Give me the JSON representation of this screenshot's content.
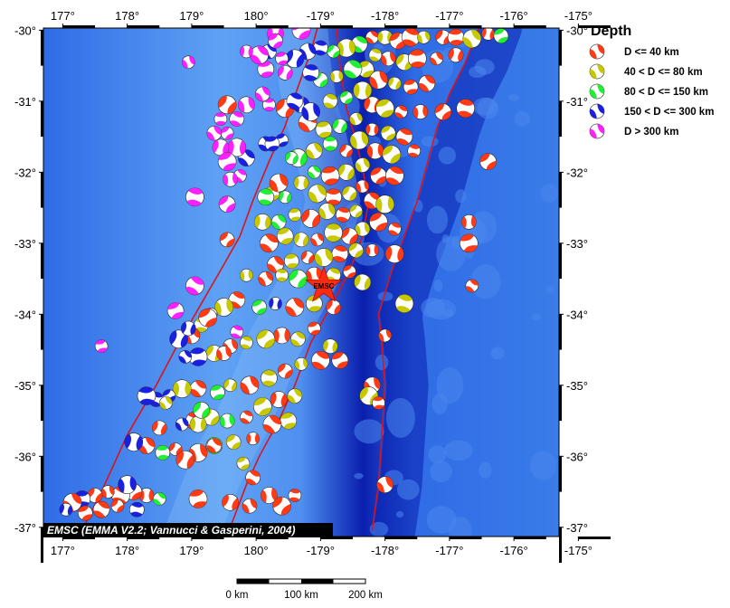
{
  "map": {
    "lon_range": [
      176.7,
      -175.3
    ],
    "lat_range": [
      -29.97,
      -37.13
    ],
    "lon_ticks": [
      {
        "value": 177,
        "label": "177°"
      },
      {
        "value": 178,
        "label": "178°"
      },
      {
        "value": 179,
        "label": "179°"
      },
      {
        "value": 180,
        "label": "180°"
      },
      {
        "value": -179,
        "label": "-179°"
      },
      {
        "value": -178,
        "label": "-178°"
      },
      {
        "value": -177,
        "label": "-177°"
      },
      {
        "value": -176,
        "label": "-176°"
      },
      {
        "value": -175,
        "label": "-175°"
      }
    ],
    "lat_ticks": [
      {
        "value": -30,
        "label": "-30°"
      },
      {
        "value": -31,
        "label": "-31°"
      },
      {
        "value": -32,
        "label": "-32°"
      },
      {
        "value": -33,
        "label": "-33°"
      },
      {
        "value": -34,
        "label": "-34°"
      },
      {
        "value": -35,
        "label": "-35°"
      },
      {
        "value": -36,
        "label": "-36°"
      },
      {
        "value": -37,
        "label": "-37°"
      }
    ],
    "credit": "EMSC (EMMA V2.2; Vannucci & Gasperini, 2004)",
    "epicenter": {
      "label": "EMSC",
      "lon": -178.95,
      "lat": -33.6,
      "color": "#ff2a10"
    },
    "fault_color": "#d8141e",
    "faults": [
      [
        [
          177.25,
          -37.13
        ],
        [
          177.6,
          -36.5
        ],
        [
          178.0,
          -35.7
        ],
        [
          178.45,
          -35.0
        ],
        [
          178.8,
          -34.4
        ],
        [
          179.15,
          -33.85
        ],
        [
          179.5,
          -33.3
        ],
        [
          179.75,
          -32.9
        ],
        [
          179.95,
          -32.4
        ],
        [
          -179.8,
          -31.85
        ],
        [
          -179.55,
          -31.35
        ],
        [
          -179.35,
          -30.8
        ],
        [
          -179.15,
          -30.3
        ],
        [
          -179.05,
          -29.97
        ]
      ],
      [
        [
          179.6,
          -37.0
        ],
        [
          179.85,
          -36.4
        ],
        [
          -179.95,
          -36.0
        ],
        [
          -179.65,
          -35.5
        ],
        [
          -179.4,
          -35.0
        ],
        [
          -179.15,
          -34.4
        ],
        [
          -178.85,
          -33.9
        ],
        [
          -178.55,
          -33.4
        ],
        [
          -178.35,
          -32.9
        ],
        [
          -178.25,
          -32.4
        ],
        [
          -178.35,
          -31.95
        ],
        [
          -178.45,
          -31.55
        ],
        [
          -178.6,
          -31.1
        ],
        [
          -178.7,
          -30.5
        ],
        [
          -178.75,
          -29.97
        ]
      ],
      [
        [
          -178.2,
          -37.05
        ],
        [
          -178.1,
          -36.4
        ],
        [
          -178.05,
          -35.7
        ],
        [
          -178.0,
          -35.0
        ],
        [
          -178.05,
          -34.4
        ],
        [
          -178.1,
          -34.0
        ],
        [
          -177.9,
          -33.4
        ],
        [
          -177.7,
          -32.9
        ],
        [
          -177.5,
          -32.4
        ],
        [
          -177.35,
          -31.9
        ],
        [
          -177.2,
          -31.4
        ],
        [
          -177.0,
          -30.9
        ],
        [
          -176.75,
          -30.45
        ],
        [
          -176.55,
          -29.97
        ]
      ]
    ],
    "ocean_colors": {
      "deep": "#0a1fae",
      "mid": "#2f6ce6",
      "shallow": "#5fa2f4",
      "ridge": "#86bdf6"
    },
    "depth_classes": [
      {
        "label": "D <= 40 km",
        "color": "#ff3a14"
      },
      {
        "label": "40 < D <= 80 km",
        "color": "#c8c800"
      },
      {
        "label": "80 < D <= 150 km",
        "color": "#22ee33"
      },
      {
        "label": "150 < D <= 300 km",
        "color": "#1a20e0"
      },
      {
        "label": "D > 300 km",
        "color": "#ff20ff"
      }
    ],
    "events": [
      [
        -178.2,
        -30.1,
        0
      ],
      [
        -178.0,
        -30.1,
        1
      ],
      [
        -177.8,
        -30.15,
        0
      ],
      [
        -177.6,
        -30.1,
        0
      ],
      [
        -177.4,
        -30.1,
        1
      ],
      [
        -177.1,
        -30.1,
        0
      ],
      [
        -176.9,
        -30.1,
        0
      ],
      [
        -176.65,
        -30.12,
        1
      ],
      [
        -176.4,
        -30.05,
        0
      ],
      [
        -176.2,
        -30.08,
        2
      ],
      [
        -178.4,
        -30.2,
        2
      ],
      [
        -178.6,
        -30.25,
        1
      ],
      [
        -178.8,
        -30.3,
        2
      ],
      [
        -179.0,
        -30.25,
        3
      ],
      [
        -179.2,
        -30.3,
        3
      ],
      [
        -179.4,
        -30.4,
        3
      ],
      [
        -179.6,
        -30.4,
        4
      ],
      [
        -179.8,
        -30.3,
        3
      ],
      [
        -179.7,
        -30.05,
        4
      ],
      [
        -179.3,
        -30.0,
        4
      ],
      [
        -178.15,
        -30.35,
        1
      ],
      [
        -177.95,
        -30.4,
        0
      ],
      [
        -177.7,
        -30.45,
        1
      ],
      [
        -177.5,
        -30.4,
        0
      ],
      [
        -177.2,
        -30.4,
        0
      ],
      [
        -176.9,
        -30.35,
        0
      ],
      [
        -178.3,
        -30.55,
        1
      ],
      [
        -178.5,
        -30.55,
        2
      ],
      [
        -178.75,
        -30.65,
        1
      ],
      [
        -179.0,
        -30.7,
        2
      ],
      [
        -179.15,
        -30.6,
        3
      ],
      [
        -178.1,
        -30.7,
        0
      ],
      [
        -177.85,
        -30.75,
        1
      ],
      [
        -177.6,
        -30.8,
        0
      ],
      [
        -177.35,
        -30.75,
        0
      ],
      [
        -178.35,
        -30.85,
        1
      ],
      [
        -178.6,
        -30.95,
        2
      ],
      [
        -178.85,
        -31.0,
        1
      ],
      [
        -179.3,
        -31.05,
        3
      ],
      [
        -179.55,
        -31.1,
        0
      ],
      [
        -179.8,
        -31.05,
        4
      ],
      [
        -179.9,
        -30.9,
        4
      ],
      [
        -178.2,
        -31.05,
        0
      ],
      [
        -178.0,
        -31.1,
        1
      ],
      [
        -177.75,
        -31.15,
        0
      ],
      [
        -177.45,
        -31.15,
        0
      ],
      [
        -177.1,
        -31.15,
        0
      ],
      [
        -176.75,
        -31.1,
        0
      ],
      [
        -178.45,
        -31.25,
        1
      ],
      [
        -178.7,
        -31.35,
        2
      ],
      [
        -178.95,
        -31.4,
        1
      ],
      [
        -179.2,
        -31.3,
        0
      ],
      [
        -178.2,
        -31.4,
        0
      ],
      [
        -177.95,
        -31.45,
        1
      ],
      [
        -177.7,
        -31.5,
        0
      ],
      [
        -178.4,
        -31.55,
        1
      ],
      [
        -178.6,
        -31.7,
        0
      ],
      [
        -178.85,
        -31.6,
        2
      ],
      [
        -179.1,
        -31.7,
        1
      ],
      [
        -179.35,
        -31.8,
        2
      ],
      [
        -179.6,
        -31.55,
        3
      ],
      [
        -179.85,
        -31.6,
        3
      ],
      [
        -178.15,
        -31.7,
        0
      ],
      [
        -177.9,
        -31.75,
        1
      ],
      [
        -177.55,
        -31.7,
        0
      ],
      [
        -178.35,
        -31.9,
        1
      ],
      [
        -178.6,
        -32.0,
        1
      ],
      [
        -178.85,
        -32.05,
        0
      ],
      [
        -179.1,
        -32.0,
        2
      ],
      [
        -179.3,
        -32.15,
        1
      ],
      [
        -178.1,
        -32.05,
        0
      ],
      [
        -177.85,
        -32.05,
        0
      ],
      [
        -178.35,
        -32.2,
        0
      ],
      [
        -178.55,
        -32.3,
        1
      ],
      [
        -178.8,
        -32.35,
        0
      ],
      [
        -179.05,
        -32.3,
        1
      ],
      [
        -179.55,
        -32.35,
        2
      ],
      [
        -179.75,
        -32.3,
        1
      ],
      [
        -178.2,
        -32.4,
        0
      ],
      [
        -178.0,
        -32.45,
        1
      ],
      [
        -178.45,
        -32.55,
        1
      ],
      [
        -178.65,
        -32.6,
        0
      ],
      [
        -178.9,
        -32.55,
        1
      ],
      [
        -179.15,
        -32.65,
        0
      ],
      [
        -179.4,
        -32.6,
        1
      ],
      [
        -179.65,
        -32.7,
        2
      ],
      [
        -179.9,
        -32.7,
        1
      ],
      [
        -178.1,
        -32.7,
        0
      ],
      [
        -177.85,
        -32.8,
        0
      ],
      [
        -178.35,
        -32.8,
        1
      ],
      [
        -178.55,
        -32.9,
        0
      ],
      [
        -178.8,
        -32.85,
        1
      ],
      [
        -179.05,
        -32.95,
        0
      ],
      [
        -179.3,
        -32.95,
        1
      ],
      [
        -179.55,
        -32.9,
        1
      ],
      [
        -179.8,
        -33.0,
        0
      ],
      [
        -178.2,
        -33.1,
        0
      ],
      [
        -178.45,
        -33.1,
        1
      ],
      [
        -178.7,
        -33.15,
        0
      ],
      [
        -178.95,
        -33.2,
        1
      ],
      [
        -179.2,
        -33.2,
        0
      ],
      [
        -179.45,
        -33.25,
        1
      ],
      [
        -179.7,
        -33.3,
        0
      ],
      [
        -177.85,
        -33.15,
        0
      ],
      [
        -178.55,
        -33.4,
        0
      ],
      [
        -178.8,
        -33.45,
        1
      ],
      [
        -179.1,
        -33.45,
        0
      ],
      [
        -179.35,
        -33.5,
        2
      ],
      [
        -179.6,
        -33.45,
        1
      ],
      [
        -179.85,
        -33.5,
        0
      ],
      [
        -178.35,
        -33.55,
        1
      ],
      [
        -176.7,
        -33.0,
        0
      ],
      [
        -176.65,
        -33.6,
        0
      ],
      [
        -176.7,
        -32.7,
        0
      ],
      [
        -176.4,
        -31.85,
        0
      ],
      [
        -177.7,
        -33.85,
        1
      ],
      [
        -178.0,
        -34.3,
        0
      ],
      [
        -178.8,
        -33.9,
        0
      ],
      [
        -179.1,
        -33.85,
        1
      ],
      [
        -179.4,
        -33.9,
        0
      ],
      [
        -179.7,
        -33.85,
        3
      ],
      [
        -179.95,
        -33.9,
        2
      ],
      [
        179.7,
        -33.8,
        0
      ],
      [
        179.5,
        -33.9,
        1
      ],
      [
        179.3,
        -34.0,
        4
      ],
      [
        179.15,
        -34.15,
        1
      ],
      [
        179.0,
        -34.3,
        0
      ],
      [
        178.8,
        -34.35,
        3
      ],
      [
        -179.1,
        -34.2,
        0
      ],
      [
        -179.35,
        -34.35,
        1
      ],
      [
        -179.6,
        -34.3,
        0
      ],
      [
        -179.85,
        -34.35,
        1
      ],
      [
        179.85,
        -34.4,
        1
      ],
      [
        179.6,
        -34.45,
        0
      ],
      [
        179.35,
        -34.55,
        1
      ],
      [
        179.1,
        -34.6,
        3
      ],
      [
        178.9,
        -34.6,
        3
      ],
      [
        -178.85,
        -34.45,
        1
      ],
      [
        -178.7,
        -34.65,
        0
      ],
      [
        -179.0,
        -34.65,
        0
      ],
      [
        -179.3,
        -34.7,
        1
      ],
      [
        -179.55,
        -34.8,
        0
      ],
      [
        -179.8,
        -34.9,
        1
      ],
      [
        179.9,
        -35.0,
        0
      ],
      [
        179.6,
        -35.0,
        1
      ],
      [
        179.4,
        -35.1,
        2
      ],
      [
        179.1,
        -35.05,
        0
      ],
      [
        178.85,
        -35.05,
        1
      ],
      [
        178.65,
        -35.15,
        3
      ],
      [
        178.45,
        -35.2,
        3
      ],
      [
        -178.2,
        -35.0,
        0
      ],
      [
        -178.25,
        -35.15,
        1
      ],
      [
        -178.1,
        -35.25,
        0
      ],
      [
        -179.4,
        -35.15,
        1
      ],
      [
        -179.65,
        -35.2,
        0
      ],
      [
        -179.9,
        -35.3,
        1
      ],
      [
        179.85,
        -35.45,
        0
      ],
      [
        179.55,
        -35.5,
        2
      ],
      [
        179.3,
        -35.45,
        1
      ],
      [
        179.05,
        -35.5,
        0
      ],
      [
        178.85,
        -35.55,
        3
      ],
      [
        178.5,
        -35.6,
        0
      ],
      [
        -179.5,
        -35.5,
        1
      ],
      [
        -179.75,
        -35.55,
        0
      ],
      [
        179.95,
        -35.75,
        0
      ],
      [
        179.65,
        -35.8,
        1
      ],
      [
        179.35,
        -35.85,
        2
      ],
      [
        179.1,
        -35.95,
        0
      ],
      [
        178.75,
        -35.9,
        0
      ],
      [
        178.55,
        -35.95,
        2
      ],
      [
        178.3,
        -35.85,
        0
      ],
      [
        178.1,
        -35.8,
        3
      ],
      [
        179.8,
        -36.1,
        1
      ],
      [
        179.95,
        -36.3,
        0
      ],
      [
        -179.8,
        -36.55,
        0
      ],
      [
        -179.6,
        -36.7,
        0
      ],
      [
        -179.4,
        -36.55,
        0
      ],
      [
        179.9,
        -36.7,
        0
      ],
      [
        179.6,
        -36.65,
        0
      ],
      [
        179.1,
        -36.6,
        0
      ],
      [
        178.5,
        -36.6,
        2
      ],
      [
        178.3,
        -36.55,
        0
      ],
      [
        178.1,
        -36.5,
        0
      ],
      [
        177.9,
        -36.55,
        0
      ],
      [
        177.7,
        -36.5,
        0
      ],
      [
        177.5,
        -36.55,
        0
      ],
      [
        177.3,
        -36.6,
        3
      ],
      [
        177.15,
        -36.65,
        0
      ],
      [
        177.05,
        -36.75,
        3
      ],
      [
        177.35,
        -36.8,
        0
      ],
      [
        177.6,
        -36.75,
        0
      ],
      [
        178.0,
        -36.4,
        3
      ],
      [
        177.85,
        -36.7,
        0
      ],
      [
        178.15,
        -36.75,
        3
      ],
      [
        -178.0,
        -36.4,
        0
      ],
      [
        178.9,
        -36.05,
        0
      ],
      [
        177.6,
        -34.45,
        4
      ],
      [
        179.35,
        -35.85,
        0
      ],
      [
        179.1,
        -35.55,
        1
      ],
      [
        179.25,
        -34.05,
        0
      ],
      [
        179.7,
        -34.25,
        4
      ],
      [
        179.5,
        -34.55,
        0
      ],
      [
        179.15,
        -35.35,
        2
      ],
      [
        178.3,
        -35.15,
        3
      ],
      [
        178.6,
        -35.25,
        1
      ],
      [
        178.95,
        -34.2,
        3
      ],
      [
        178.75,
        -33.95,
        4
      ],
      [
        179.05,
        -33.6,
        4
      ],
      [
        179.85,
        -33.45,
        1
      ],
      [
        179.55,
        -32.95,
        0
      ],
      [
        -179.85,
        -32.35,
        2
      ],
      [
        -179.65,
        -32.15,
        0
      ],
      [
        -179.45,
        -31.8,
        2
      ],
      [
        -179.75,
        -31.6,
        3
      ],
      [
        179.85,
        -31.8,
        3
      ],
      [
        179.7,
        -31.65,
        4
      ],
      [
        179.55,
        -31.45,
        4
      ],
      [
        179.7,
        -31.25,
        4
      ],
      [
        179.85,
        -31.05,
        4
      ],
      [
        179.55,
        -31.05,
        0
      ],
      [
        179.45,
        -31.25,
        4
      ],
      [
        179.35,
        -31.45,
        4
      ],
      [
        179.45,
        -31.65,
        4
      ],
      [
        179.55,
        -31.85,
        4
      ],
      [
        179.75,
        -32.05,
        4
      ],
      [
        179.6,
        -32.1,
        4
      ],
      [
        179.55,
        -32.45,
        4
      ],
      [
        179.05,
        -32.35,
        4
      ],
      [
        178.95,
        -30.45,
        4
      ],
      [
        -179.55,
        -30.6,
        4
      ],
      [
        -179.85,
        -30.55,
        4
      ],
      [
        -179.95,
        -30.35,
        4
      ],
      [
        179.85,
        -30.3,
        4
      ],
      [
        -179.7,
        -30.15,
        4
      ],
      [
        -179.4,
        -31.0,
        3
      ],
      [
        -179.15,
        -31.15,
        3
      ]
    ],
    "scale_bar": {
      "labels": [
        "0 km",
        "100 km",
        "200 km"
      ],
      "bar_color": "#000000"
    }
  }
}
